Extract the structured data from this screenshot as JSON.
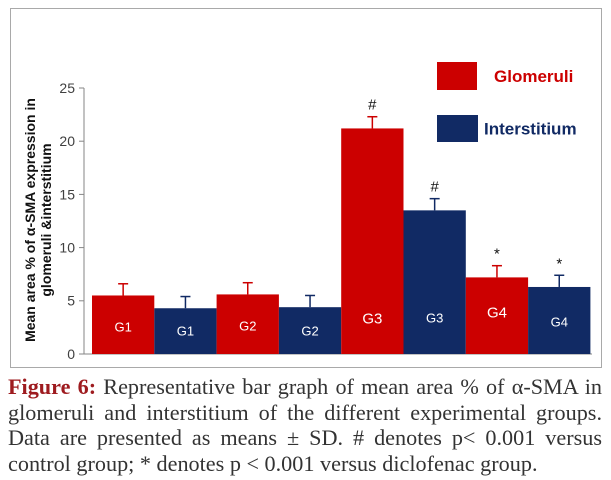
{
  "figure": {
    "label": "Figure 6:",
    "label_color": "#9e1b1f",
    "caption": "Representative bar graph of mean area % of α-SMA in glomeruli and interstitium of the different experimental groups. Data are presented as means ± SD. # denotes p< 0.001 versus control group; * denotes p < 0.001 versus diclofenac group."
  },
  "chart_data": {
    "type": "bar",
    "ylabel": "Mean area % of α-SMA expression in glomeruli &interstitium",
    "ylim": [
      0,
      25
    ],
    "yticks": [
      0,
      5,
      10,
      15,
      20,
      25
    ],
    "categories": [
      "G1",
      "G2",
      "G3",
      "G4"
    ],
    "series": [
      {
        "name": "Glomeruli",
        "color": "#cc0000",
        "values": [
          5.5,
          5.6,
          21.2,
          7.2
        ],
        "sd": [
          1.1,
          1.1,
          1.1,
          1.1
        ],
        "annotations": [
          "",
          "",
          "#",
          "*"
        ]
      },
      {
        "name": "Interstitium",
        "color": "#112a64",
        "values": [
          4.3,
          4.4,
          13.5,
          6.3
        ],
        "sd": [
          1.1,
          1.1,
          1.1,
          1.1
        ],
        "annotations": [
          "",
          "",
          "#",
          "*"
        ]
      }
    ],
    "grid": false,
    "legend": "top-right"
  }
}
